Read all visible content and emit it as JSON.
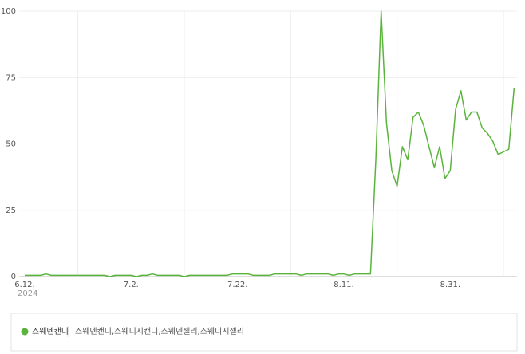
{
  "chart_data": {
    "type": "line",
    "categories": [
      "6.12.",
      null,
      null,
      null,
      null,
      null,
      null,
      null,
      null,
      null,
      null,
      null,
      null,
      null,
      null,
      null,
      null,
      null,
      null,
      null,
      "7.2.",
      null,
      null,
      null,
      null,
      null,
      null,
      null,
      null,
      null,
      null,
      null,
      null,
      null,
      null,
      null,
      null,
      null,
      null,
      null,
      "7.22.",
      null,
      null,
      null,
      null,
      null,
      null,
      null,
      null,
      null,
      null,
      null,
      null,
      null,
      null,
      null,
      null,
      null,
      null,
      null,
      "8.11.",
      null,
      null,
      null,
      null,
      null,
      null,
      null,
      null,
      null,
      null,
      null,
      null,
      null,
      null,
      null,
      null,
      null,
      null,
      null,
      "8.31.",
      null,
      null,
      null,
      null,
      null,
      null,
      null,
      null,
      null,
      null,
      null,
      null
    ],
    "year_label": "2024",
    "series": [
      {
        "name": "스웨덴캔디",
        "color": "#5ab43c",
        "values": [
          0.5,
          0.5,
          0.5,
          0.5,
          1,
          0.5,
          0.5,
          0.5,
          0.5,
          0.5,
          0.5,
          0.5,
          0.5,
          0.5,
          0.5,
          0.5,
          0,
          0.5,
          0.5,
          0.5,
          0.5,
          0,
          0.5,
          0.5,
          1,
          0.5,
          0.5,
          0.5,
          0.5,
          0.5,
          0,
          0.5,
          0.5,
          0.5,
          0.5,
          0.5,
          0.5,
          0.5,
          0.5,
          1,
          1,
          1,
          1,
          0.5,
          0.5,
          0.5,
          0.5,
          1,
          1,
          1,
          1,
          1,
          0.5,
          1,
          1,
          1,
          1,
          1,
          0.5,
          1,
          1,
          0.5,
          1,
          1,
          1,
          1,
          44,
          100,
          58,
          40,
          34,
          49,
          44,
          60,
          62,
          57,
          49,
          41,
          49,
          37,
          40,
          63,
          70,
          59,
          62,
          62,
          56,
          54,
          51,
          46,
          47,
          48,
          71
        ]
      }
    ],
    "legend_keywords": "스웨덴캔디,스웨디시캔디,스웨덴젤리,스웨디시젤리",
    "ylim": [
      0,
      100
    ],
    "yticks": [
      0,
      25,
      50,
      75,
      100
    ],
    "grid": true
  }
}
